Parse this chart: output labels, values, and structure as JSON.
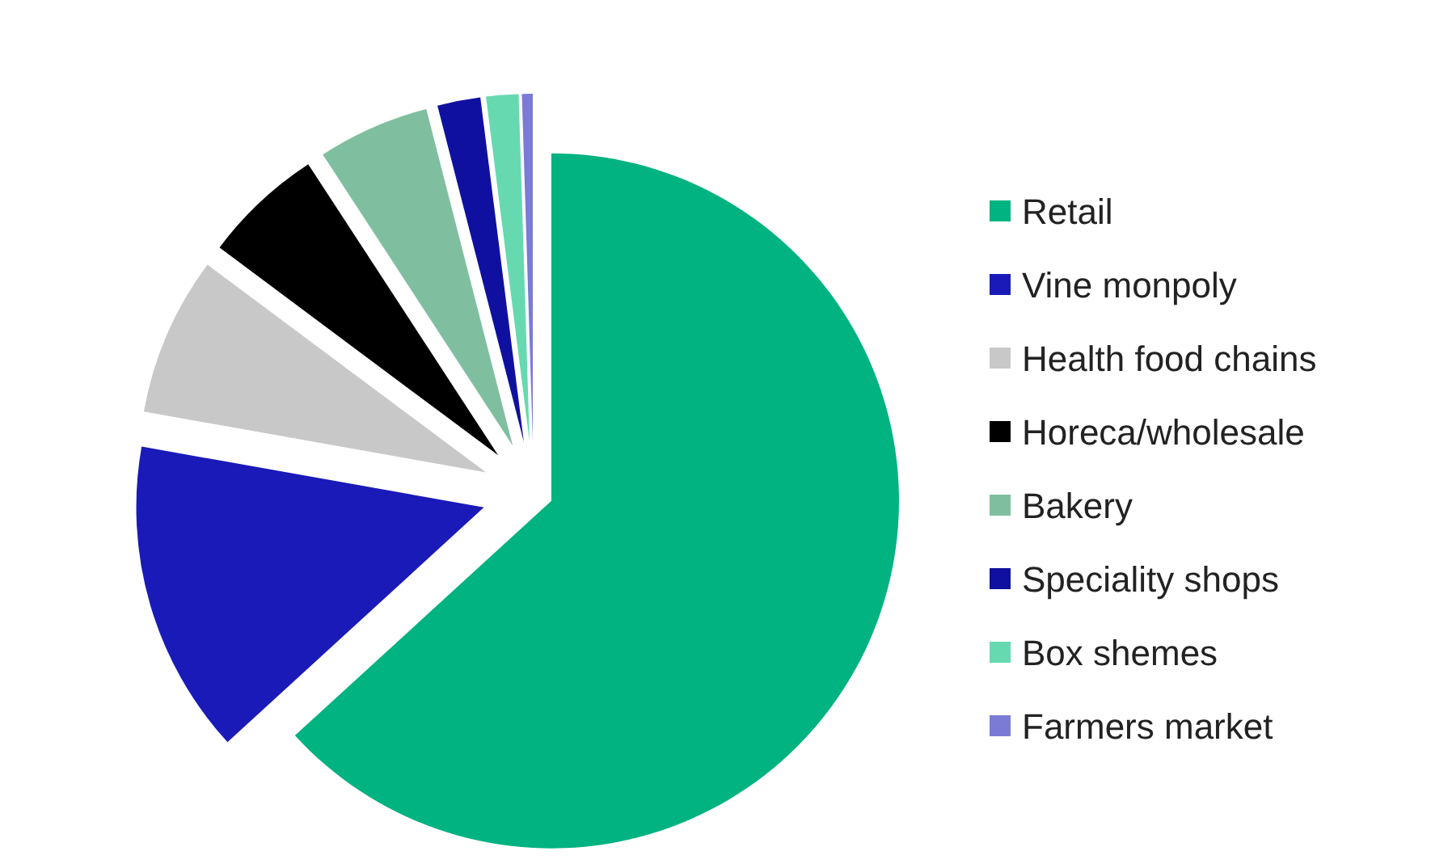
{
  "chart_data": {
    "type": "pie",
    "categories": [
      "Retail",
      "Vine monpoly",
      "Health food chains",
      "Horeca/wholesale",
      "Bakery",
      "Speciality shops",
      "Box shemes",
      "Farmers market"
    ],
    "values": [
      63.2,
      14.6,
      7.4,
      5.6,
      5.2,
      2,
      1.5,
      0.5
    ],
    "colors": [
      "#00b381",
      "#1a1ab8",
      "#c8c8c8",
      "#000000",
      "#7fbfa0",
      "#1010a0",
      "#66d9b0",
      "#7b7bd6"
    ],
    "legend": "right"
  }
}
